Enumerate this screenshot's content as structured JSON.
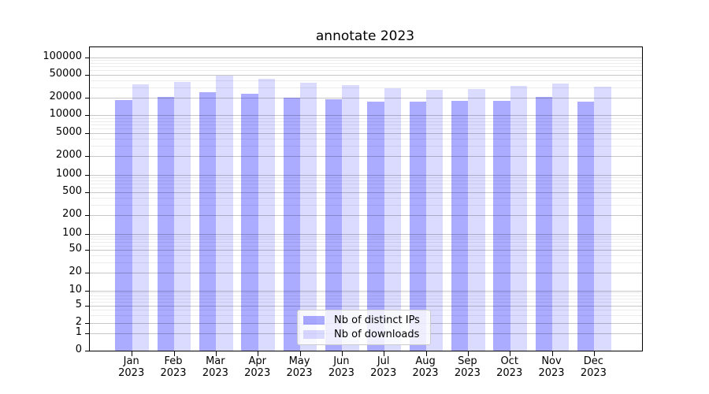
{
  "chart": {
    "title": "annotate 2023",
    "legend": {
      "items": [
        {
          "label": "Nb of distinct IPs",
          "color": "rgba(0,0,255,0.33)"
        },
        {
          "label": "Nb of downloads",
          "color": "rgba(0,0,255,0.14)"
        }
      ]
    },
    "colors": {
      "bar_distinct_ips": "rgba(0,0,255,0.33)",
      "bar_downloads": "rgba(0,0,255,0.14)",
      "grid_major": "rgba(0,0,0,0.22)",
      "grid_minor": "rgba(0,0,0,0.075)",
      "axis": "#000000"
    }
  },
  "chart_data": {
    "type": "bar",
    "title": "annotate 2023",
    "categories": [
      "Jan 2023",
      "Feb 2023",
      "Mar 2023",
      "Apr 2023",
      "May 2023",
      "Jun 2023",
      "Jul 2023",
      "Aug 2023",
      "Sep 2023",
      "Oct 2023",
      "Nov 2023",
      "Dec 2023"
    ],
    "series": [
      {
        "name": "Nb of distinct IPs",
        "values": [
          18100,
          20500,
          24500,
          23200,
          20000,
          18400,
          16800,
          17000,
          17300,
          17700,
          20200,
          17000
        ]
      },
      {
        "name": "Nb of downloads",
        "values": [
          33400,
          36500,
          47000,
          42000,
          36300,
          32300,
          28500,
          27300,
          28200,
          31300,
          34400,
          30800
        ]
      }
    ],
    "xlabel": "",
    "ylabel": "",
    "yscale": "symlog",
    "y_ticks": [
      100000,
      50000,
      20000,
      10000,
      5000,
      2000,
      1000,
      500,
      200,
      100,
      50,
      20,
      10,
      5,
      2,
      1,
      0
    ],
    "ylim": [
      0,
      150000
    ],
    "grid": "major+minor",
    "legend_position": "lower center"
  }
}
